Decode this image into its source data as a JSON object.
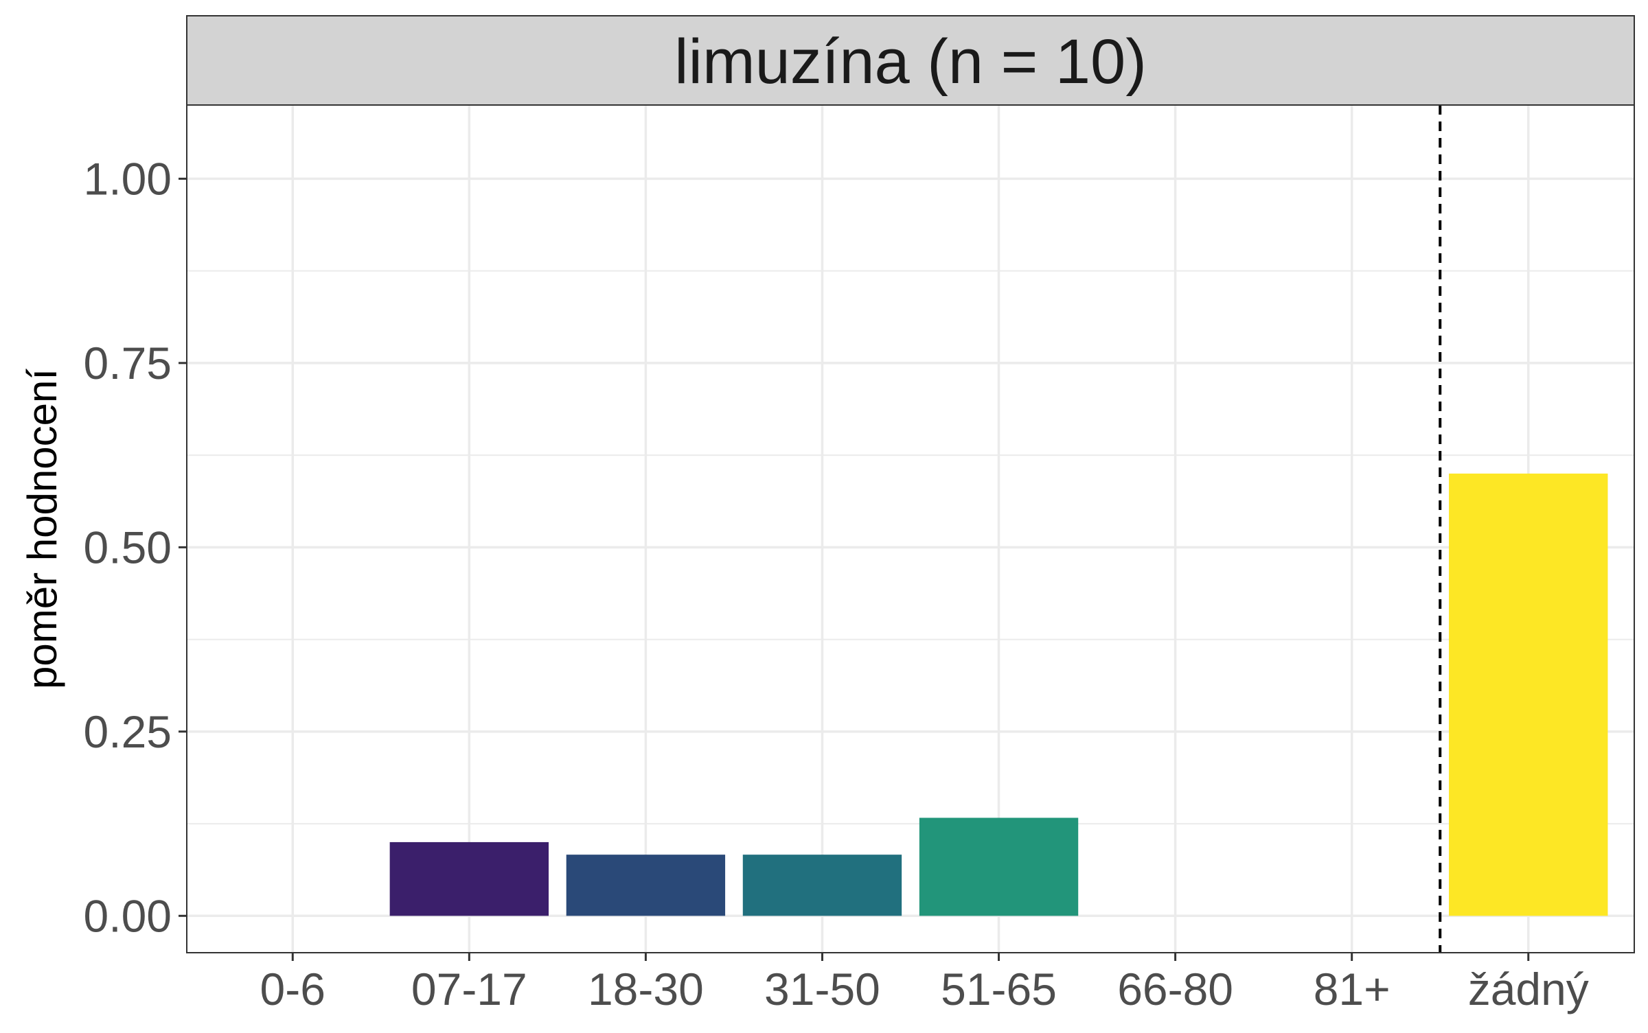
{
  "chart_data": {
    "type": "bar",
    "facet_title": "limuzína (n = 10)",
    "xlabel": "",
    "ylabel": "poměr hodnocení",
    "categories": [
      "0-6",
      "07-17",
      "18-30",
      "31-50",
      "51-65",
      "66-80",
      "81+",
      "žádný"
    ],
    "values": [
      0,
      0.1,
      0.083,
      0.083,
      0.133,
      0,
      0,
      0.6
    ],
    "colors": [
      "#440154",
      "#3b1f6b",
      "#2a4978",
      "#21707e",
      "#22957a",
      "#5ec962",
      "#b5de2b",
      "#fde725"
    ],
    "ylim": [
      -0.05,
      1.1
    ],
    "yticks": [
      0,
      0.25,
      0.5,
      0.75,
      1.0
    ],
    "ytick_labels": [
      "0.00",
      "0.25",
      "0.50",
      "0.75",
      "1.00"
    ],
    "reference_line": {
      "between": [
        "81+",
        "žádný"
      ],
      "style": "dashed"
    },
    "grid": true,
    "legend": "none"
  }
}
